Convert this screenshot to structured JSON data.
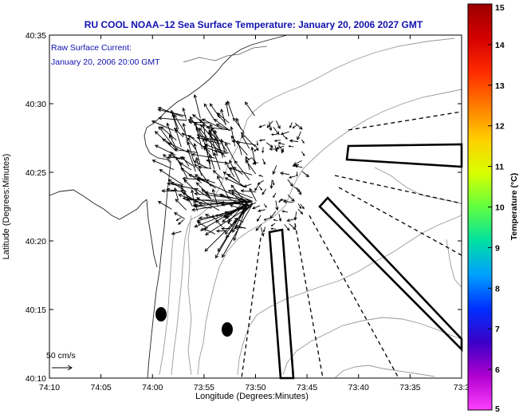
{
  "title": "RU COOL  NOAA–12  Sea Surface Temperature:  January 20, 2006 2027 GMT",
  "legend_text": {
    "line1": "Raw Surface Current:",
    "line2": "January 20, 2006 20:00 GMT"
  },
  "x_axis": {
    "label": "Longitude (Degrees:Minutes)",
    "ticks": [
      "74:10",
      "74:05",
      "74:00",
      "73:55",
      "73:50",
      "73:45",
      "73:40",
      "73:35",
      "73:3"
    ]
  },
  "y_axis": {
    "label": "Latitude (Degrees:Minutes)",
    "ticks": [
      "40:35",
      "40:30",
      "40:25",
      "40:20",
      "40:15",
      "40:10"
    ]
  },
  "colorbar": {
    "label": "Temperature (°C)",
    "ticks": [
      "15",
      "14",
      "13",
      "12",
      "11",
      "10",
      "9",
      "8",
      "7",
      "6",
      "5"
    ],
    "colors": [
      "#9b0000",
      "#d40000",
      "#ff2a00",
      "#ff7a00",
      "#ffcf00",
      "#d8ff00",
      "#60ff40",
      "#00e0a0",
      "#00a0ff",
      "#0030ff",
      "#3a00c8",
      "#b000d0",
      "#ff40ff"
    ]
  },
  "scale_bar": {
    "label": "50 cm/s"
  },
  "chart_data": {
    "type": "map",
    "title": "RU COOL  NOAA–12  Sea Surface Temperature:  January 20, 2006 2027 GMT",
    "xlabel": "Longitude (Degrees:Minutes)",
    "ylabel": "Latitude (Degrees:Minutes)",
    "xticks": [
      "74:10",
      "74:05",
      "74:00",
      "73:55",
      "73:50",
      "73:45",
      "73:40",
      "73:35",
      "73:3"
    ],
    "yticks": [
      "40:35",
      "40:30",
      "40:25",
      "40:20",
      "40:15",
      "40:10"
    ],
    "colorbar_range": [
      5,
      15
    ],
    "colorbar_label": "Temperature (°C)",
    "vector_scale": "50 cm/s"
  }
}
